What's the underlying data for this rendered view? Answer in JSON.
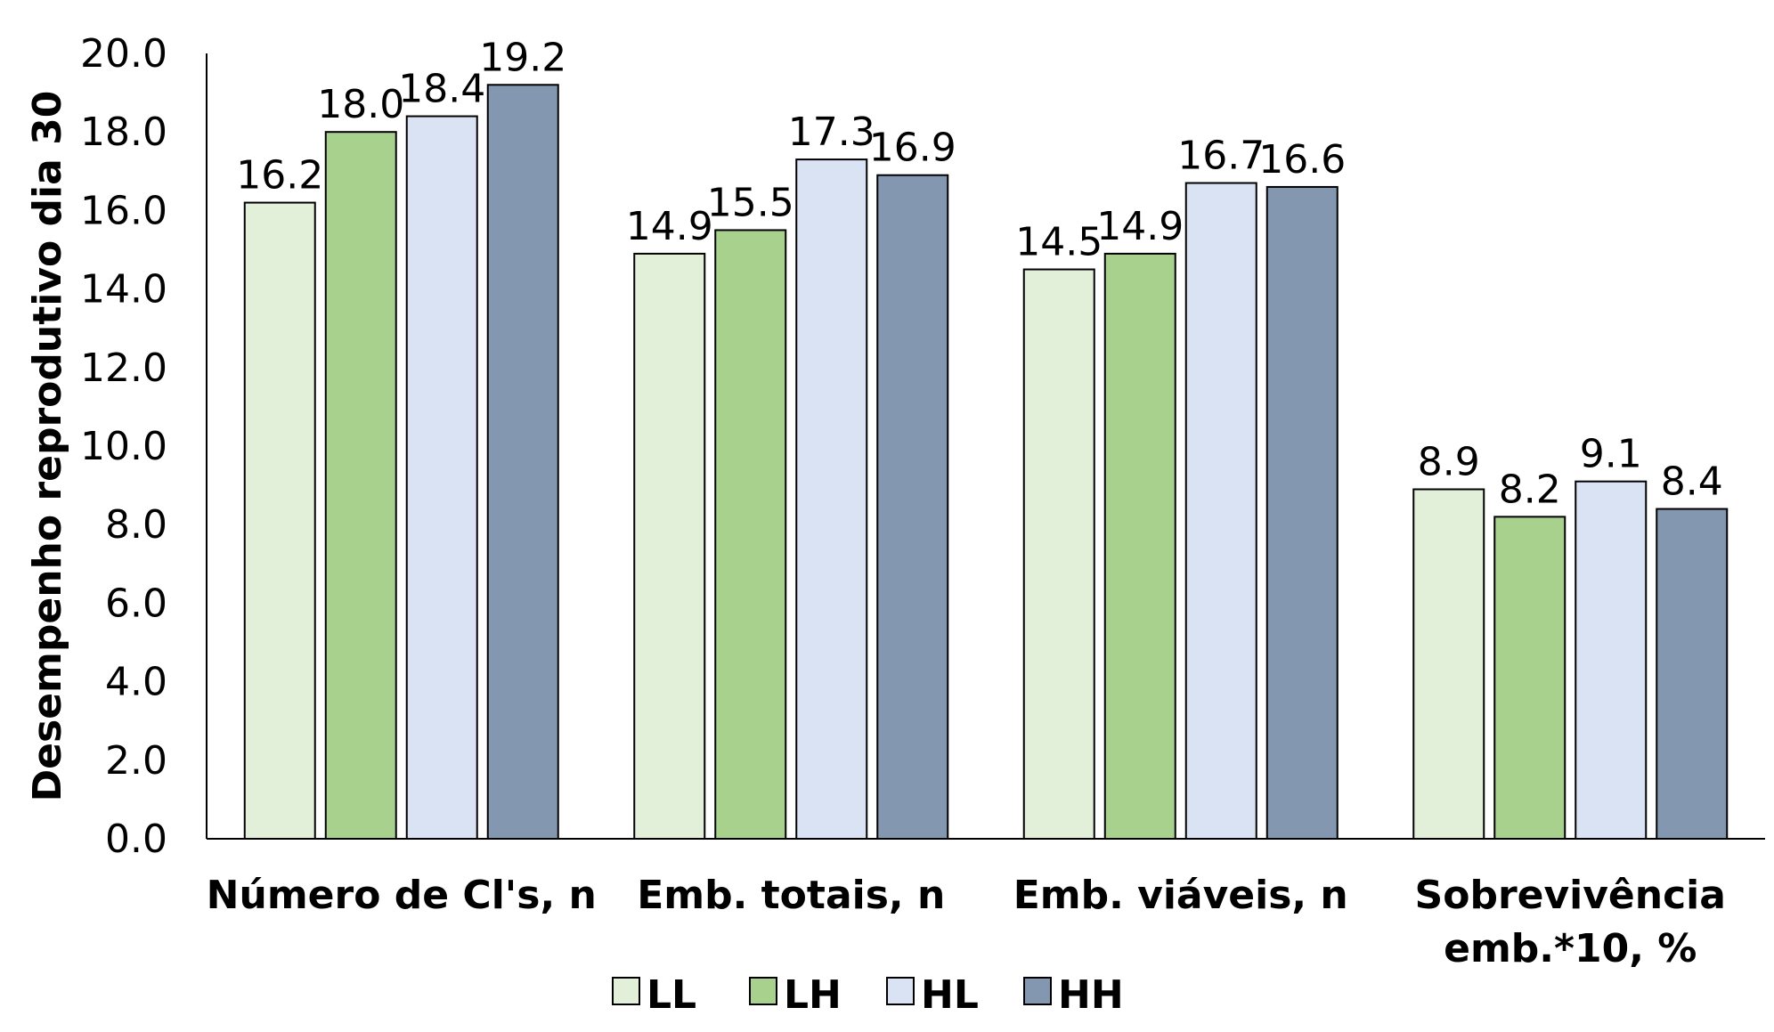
{
  "chart_data": {
    "type": "bar",
    "title": "",
    "ylabel": "Desempenho reprodutivo dia 30",
    "xlabel": "",
    "ylim": [
      0,
      20
    ],
    "yticks": [
      0,
      2,
      4,
      6,
      8,
      10,
      12,
      14,
      16,
      18,
      20
    ],
    "ytick_labels": [
      "0.0",
      "2.0",
      "4.0",
      "6.0",
      "8.0",
      "10.0",
      "12.0",
      "14.0",
      "16.0",
      "18.0",
      "20.0"
    ],
    "categories": [
      [
        "Número de Cl's, n"
      ],
      [
        "Emb. totais, n"
      ],
      [
        "Emb. viáveis, n"
      ],
      [
        "Sobrevivência",
        "emb.*10, %"
      ]
    ],
    "series": [
      {
        "name": "LL",
        "color": "#e2efd9",
        "values": [
          16.2,
          14.9,
          14.5,
          8.9
        ],
        "labels": [
          "16.2",
          "14.9",
          "14.5",
          "8.9"
        ]
      },
      {
        "name": "LH",
        "color": "#a9d18e",
        "values": [
          18.0,
          15.5,
          14.9,
          8.2
        ],
        "labels": [
          "18.0",
          "15.5",
          "14.9",
          "8.2"
        ]
      },
      {
        "name": "HL",
        "color": "#dae3f3",
        "values": [
          18.4,
          17.3,
          16.7,
          9.1
        ],
        "labels": [
          "18.4",
          "17.3",
          "16.7",
          "9.1"
        ]
      },
      {
        "name": "HH",
        "color": "#8497b0",
        "values": [
          19.2,
          16.9,
          16.6,
          8.4
        ],
        "labels": [
          "19.2",
          "16.9",
          "16.6",
          "8.4"
        ]
      }
    ],
    "grid": false,
    "legend": "bottom"
  }
}
